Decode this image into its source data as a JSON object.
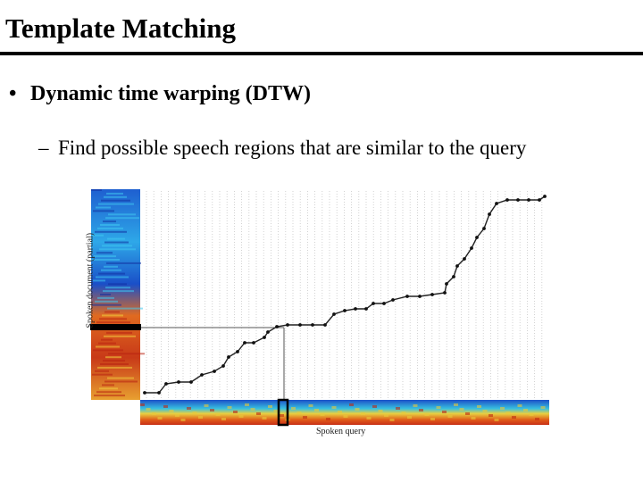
{
  "slide": {
    "title": "Template Matching",
    "bullet": {
      "marker": "•",
      "text": "Dynamic time warping (DTW)"
    },
    "sub_bullet": {
      "marker": "–",
      "text": "Find possible speech regions that are similar to the query"
    }
  },
  "figure": {
    "x_axis_label": "Spoken query",
    "y_axis_label": "Spoken document (partial)",
    "colors": {
      "path": "#222222",
      "marker": "#111111",
      "grid": "#c8c8c8"
    }
  }
}
